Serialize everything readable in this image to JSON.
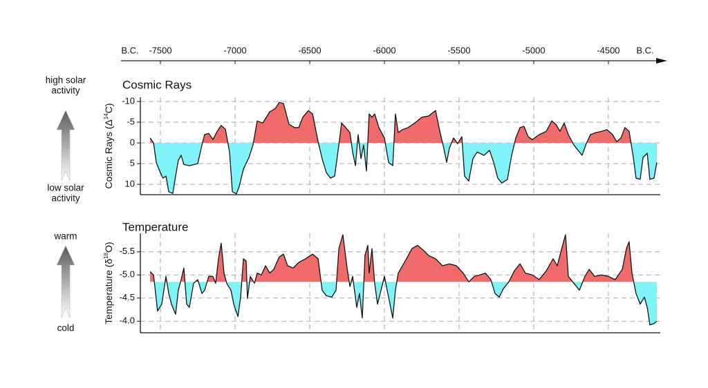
{
  "x_axis": {
    "left_label": "B.C.",
    "right_label": "B.C.",
    "xlim": [
      -7764,
      -4106
    ],
    "xticks": [
      -7500,
      -7000,
      -6500,
      -6000,
      -5500,
      -5000,
      -4500
    ]
  },
  "chart_data": [
    {
      "type": "area",
      "title": "Cosmic Rays",
      "y_label": [
        "Cosmic Rays (Δ",
        "14",
        "C)"
      ],
      "arrow_top_label": [
        "high solar",
        "activity"
      ],
      "arrow_bottom_label": [
        "low solar",
        "activity"
      ],
      "ylim": [
        -11,
        12.5
      ],
      "inverted": true,
      "yticks": [
        -10,
        -5,
        0,
        5,
        10
      ],
      "threshold": 0,
      "grid": true,
      "above_color": "#f26b6b",
      "below_color": "#7ff3f7",
      "line_color": "#111111",
      "x": [
        -7569,
        -7546,
        -7528,
        -7500,
        -7482,
        -7463,
        -7444,
        -7417,
        -7398,
        -7380,
        -7361,
        -7343,
        -7306,
        -7250,
        -7222,
        -7204,
        -7176,
        -7148,
        -7120,
        -7093,
        -7065,
        -7037,
        -7018,
        -6991,
        -6972,
        -6944,
        -6907,
        -6880,
        -6852,
        -6815,
        -6768,
        -6731,
        -6704,
        -6676,
        -6639,
        -6602,
        -6574,
        -6546,
        -6509,
        -6481,
        -6444,
        -6417,
        -6389,
        -6361,
        -6333,
        -6305,
        -6287,
        -6259,
        -6231,
        -6213,
        -6194,
        -6176,
        -6157,
        -6139,
        -6120,
        -6102,
        -6083,
        -6065,
        -6037,
        -6000,
        -5972,
        -5944,
        -5926,
        -5907,
        -5879,
        -5842,
        -5796,
        -5750,
        -5704,
        -5657,
        -5629,
        -5602,
        -5583,
        -5565,
        -5537,
        -5509,
        -5481,
        -5463,
        -5435,
        -5407,
        -5379,
        -5333,
        -5296,
        -5268,
        -5241,
        -5213,
        -5176,
        -5148,
        -5120,
        -5092,
        -5065,
        -5037,
        -5009,
        -4963,
        -4916,
        -4879,
        -4852,
        -4824,
        -4796,
        -4768,
        -4731,
        -4703,
        -4676,
        -4648,
        -4620,
        -4583,
        -4546,
        -4509,
        -4472,
        -4444,
        -4416,
        -4389,
        -4361,
        -4333,
        -4315,
        -4287,
        -4268,
        -4240,
        -4222,
        -4194,
        -4176
      ],
      "values": [
        -1.2,
        0,
        4.7,
        7.2,
        8.5,
        8,
        11.8,
        12.2,
        8,
        4.2,
        3,
        5.2,
        5.5,
        5,
        0.5,
        -2,
        -2.3,
        -0.8,
        -2.8,
        -4.2,
        -3.3,
        2.2,
        11.8,
        12.3,
        10.5,
        6.3,
        3.5,
        0.5,
        -5.3,
        -4.8,
        -7.5,
        -8.3,
        -9.8,
        -9.5,
        -4.5,
        -3.7,
        -3.7,
        -6.2,
        -7.8,
        -7,
        -0.3,
        3.8,
        7.2,
        8.5,
        8,
        0.5,
        -4.8,
        -3.7,
        -2.5,
        2.2,
        5.5,
        -2,
        3.8,
        0.5,
        6.8,
        -7,
        -6.2,
        -7,
        -3.7,
        -1.2,
        4.7,
        5.5,
        -7,
        -2.5,
        -3.2,
        -3.7,
        -4.8,
        -6.2,
        -6.5,
        -7.8,
        -2.8,
        1.3,
        4.7,
        1.3,
        -1.2,
        0.2,
        -1.5,
        8,
        9.2,
        3.8,
        2.2,
        3,
        1.8,
        4.7,
        8.5,
        9.7,
        8.8,
        3,
        -1.2,
        -3.7,
        -4,
        -1.5,
        -0.8,
        -2,
        -2.8,
        -5.3,
        -4.5,
        -2.8,
        -4.8,
        -2,
        0.5,
        1.8,
        3,
        0.2,
        -2,
        -2.5,
        -2.8,
        -3.2,
        -2,
        -0.3,
        -1.2,
        -3.7,
        -2.8,
        3.5,
        8.5,
        8.8,
        3.5,
        2.5,
        8.8,
        8.5,
        4.7
      ]
    },
    {
      "type": "area",
      "title": "Temperature",
      "y_label": [
        "Temperature (δ",
        "18",
        "O)"
      ],
      "arrow_top_label": [
        "warm"
      ],
      "arrow_bottom_label": [
        "cold"
      ],
      "ylim": [
        -5.9,
        -3.75
      ],
      "inverted": true,
      "yticks": [
        -5.5,
        {
          "value": -5,
          "label": "-5.0"
        },
        -4.5,
        {
          "value": -4,
          "label": "-4.0"
        }
      ],
      "threshold": -4.85,
      "grid": true,
      "above_color": "#f26b6b",
      "below_color": "#7ff3f7",
      "line_color": "#111111",
      "x": [
        -7569,
        -7546,
        -7519,
        -7491,
        -7463,
        -7444,
        -7426,
        -7398,
        -7380,
        -7361,
        -7343,
        -7324,
        -7306,
        -7278,
        -7250,
        -7222,
        -7204,
        -7176,
        -7148,
        -7130,
        -7111,
        -7093,
        -7074,
        -7056,
        -7028,
        -7009,
        -6981,
        -6963,
        -6944,
        -6926,
        -6917,
        -6898,
        -6870,
        -6852,
        -6824,
        -6796,
        -6768,
        -6741,
        -6704,
        -6676,
        -6648,
        -6611,
        -6574,
        -6528,
        -6481,
        -6444,
        -6417,
        -6389,
        -6352,
        -6324,
        -6305,
        -6278,
        -6250,
        -6231,
        -6213,
        -6185,
        -6167,
        -6148,
        -6130,
        -6111,
        -6102,
        -6083,
        -6065,
        -6046,
        -6028,
        -6000,
        -5972,
        -5944,
        -5926,
        -5907,
        -5879,
        -5852,
        -5815,
        -5778,
        -5741,
        -5704,
        -5657,
        -5611,
        -5565,
        -5518,
        -5472,
        -5435,
        -5398,
        -5361,
        -5324,
        -5287,
        -5259,
        -5231,
        -5204,
        -5167,
        -5130,
        -5092,
        -5055,
        -5009,
        -4963,
        -4916,
        -4870,
        -4842,
        -4815,
        -4787,
        -4768,
        -4731,
        -4694,
        -4657,
        -4629,
        -4592,
        -4546,
        -4500,
        -4454,
        -4407,
        -4379,
        -4361,
        -4342,
        -4315,
        -4287,
        -4259,
        -4240,
        -4222,
        -4194,
        -4176
      ],
      "values": [
        -5.07,
        -5.0,
        -4.22,
        -4.37,
        -4.97,
        -4.6,
        -4.37,
        -4.15,
        -4.67,
        -4.9,
        -5.15,
        -4.37,
        -4.3,
        -4.82,
        -4.9,
        -4.6,
        -4.67,
        -4.97,
        -4.97,
        -4.82,
        -5.35,
        -5.69,
        -5.04,
        -4.82,
        -4.67,
        -4.37,
        -4.1,
        -4.52,
        -5.35,
        -5.3,
        -4.49,
        -4.97,
        -4.82,
        -5.04,
        -5.0,
        -5.2,
        -5.04,
        -5.12,
        -5.39,
        -5.45,
        -5.2,
        -5.15,
        -5.27,
        -5.35,
        -5.45,
        -5.35,
        -4.67,
        -4.55,
        -4.52,
        -4.67,
        -5.57,
        -5.87,
        -5.15,
        -4.75,
        -4.97,
        -4.3,
        -4.6,
        -4.07,
        -5.42,
        -5.64,
        -5.04,
        -5.57,
        -4.82,
        -4.37,
        -4.6,
        -4.97,
        -4.52,
        -4.07,
        -4.67,
        -5.04,
        -5.2,
        -5.35,
        -5.57,
        -5.64,
        -5.54,
        -5.42,
        -5.35,
        -5.2,
        -5.24,
        -5.2,
        -5.04,
        -4.85,
        -4.97,
        -5.0,
        -5.04,
        -4.9,
        -4.6,
        -4.52,
        -4.7,
        -4.85,
        -5.09,
        -5.24,
        -5.04,
        -5.0,
        -4.9,
        -5.09,
        -5.35,
        -5.2,
        -5.54,
        -5.87,
        -4.97,
        -4.82,
        -4.67,
        -4.97,
        -5.12,
        -4.97,
        -5.0,
        -4.97,
        -4.9,
        -5.12,
        -5.57,
        -5.72,
        -5.04,
        -4.6,
        -4.37,
        -4.52,
        -4.3,
        -3.92,
        -3.95,
        -4.0
      ]
    }
  ]
}
